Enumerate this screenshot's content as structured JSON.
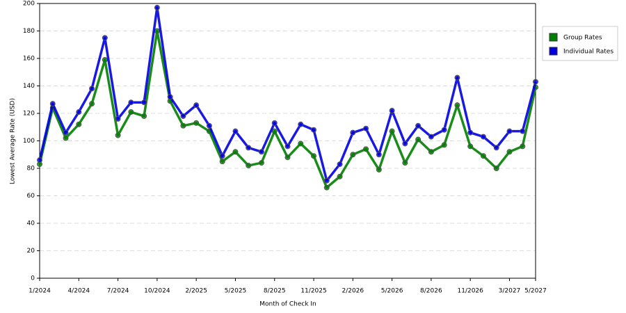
{
  "chart_data": {
    "type": "line",
    "x_label": "Month of Check In",
    "y_label": "Lowest Average Rate (USD)",
    "categories": [
      "1/2024",
      null,
      null,
      "4/2024",
      null,
      null,
      "7/2024",
      null,
      null,
      "10/2024",
      null,
      null,
      "2/2025",
      null,
      null,
      "5/2025",
      null,
      null,
      "8/2025",
      null,
      null,
      "11/2025",
      null,
      null,
      "2/2026",
      null,
      null,
      "5/2026",
      null,
      null,
      "8/2026",
      null,
      null,
      "11/2026",
      null,
      null,
      "3/2027",
      null,
      "5/2027"
    ],
    "series": [
      {
        "name": "Group Rates",
        "color": "#008000",
        "values": [
          83,
          124,
          102,
          112,
          127,
          159,
          104,
          121,
          118,
          180,
          129,
          111,
          113,
          107,
          85,
          92,
          82,
          84,
          107,
          88,
          98,
          89,
          66,
          74,
          90,
          94,
          79,
          107,
          84,
          101,
          92,
          97,
          126,
          96,
          89,
          80,
          92,
          96,
          139
        ]
      },
      {
        "name": "Individual Rates",
        "color": "#0000e0",
        "values": [
          86,
          127,
          106,
          121,
          138,
          175,
          116,
          128,
          128,
          197,
          132,
          118,
          126,
          111,
          89,
          107,
          95,
          92,
          113,
          96,
          112,
          108,
          71,
          83,
          106,
          109,
          90,
          122,
          98,
          111,
          103,
          108,
          146,
          106,
          103,
          95,
          107,
          107,
          143
        ]
      }
    ],
    "ylim": [
      0,
      200
    ],
    "yticks": [
      0,
      20,
      40,
      60,
      80,
      100,
      120,
      140,
      160,
      180,
      200
    ],
    "grid": true,
    "legend": "right"
  }
}
